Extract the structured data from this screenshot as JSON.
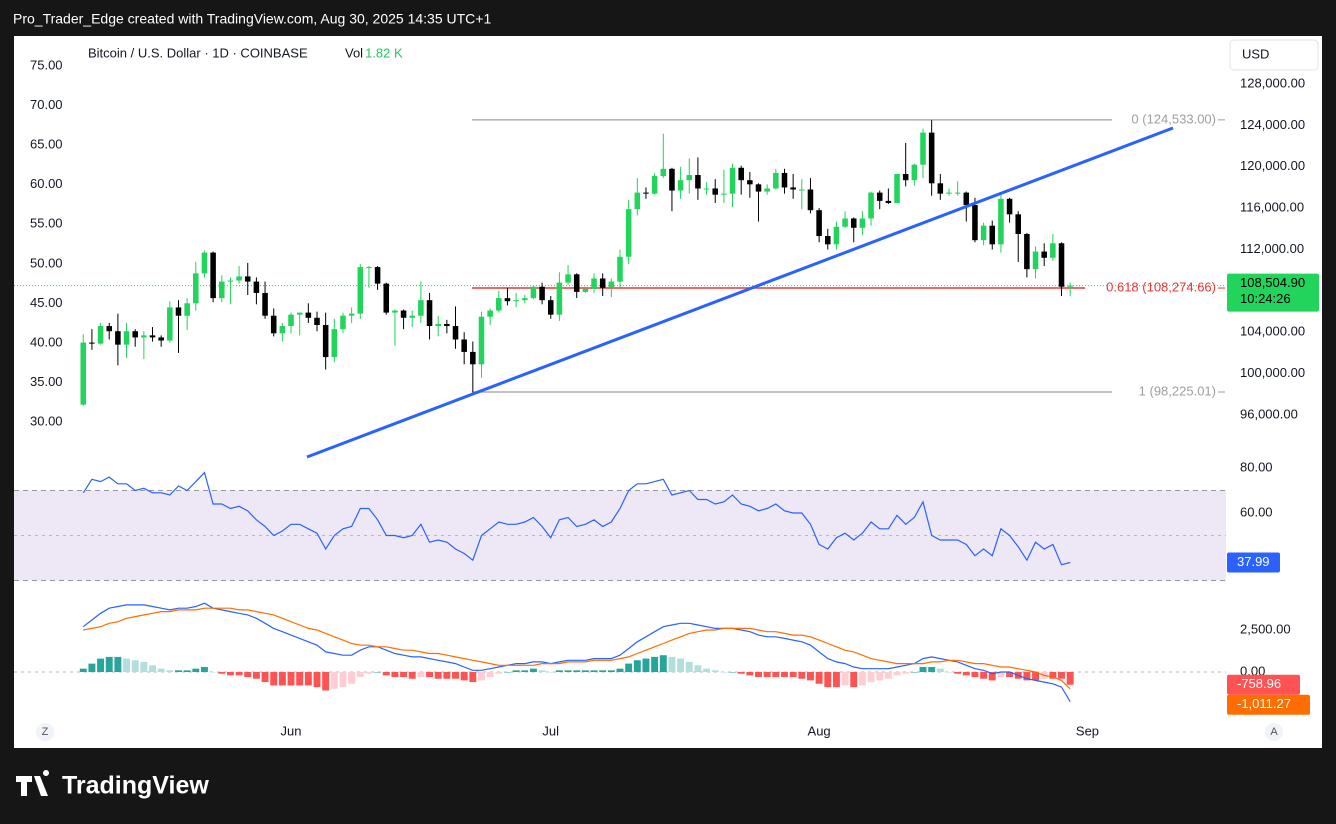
{
  "header": "Pro_Trader_Edge created with TradingView.com, Aug 30, 2025 14:35 UTC+1",
  "brand": "TradingView",
  "corner_left": "Z",
  "corner_right": "A",
  "chart_data": [
    {
      "type": "candlestick",
      "title": "Bitcoin / U.S. Dollar · 1D · COINBASE",
      "volume_label": "Vol",
      "volume": {
        "value": 1820,
        "label": "1.82 K"
      },
      "currency": "USD",
      "up_color": "#22d35c",
      "down_color": "#000000",
      "open": [
        97000,
        103000,
        102900,
        104600,
        104100,
        102800,
        104100,
        103500,
        103700,
        103500,
        103200,
        106400,
        105600,
        106800,
        109700,
        111700,
        107300,
        108900,
        109000,
        109400,
        108900,
        107800,
        105600,
        103900,
        104600,
        105700,
        105900,
        105400,
        104700,
        101600,
        104300,
        105600,
        105800,
        110300,
        110300,
        108700,
        105900,
        106100,
        105400,
        105600,
        107100,
        104600,
        104800,
        104600,
        103300,
        102100,
        100900,
        105500,
        106100,
        107300,
        107000,
        107100,
        107300,
        108400,
        107100,
        105700,
        108800,
        109600,
        107900,
        108200,
        109200,
        108300,
        108900,
        111300,
        115900,
        117500,
        117400,
        119100,
        119800,
        117700,
        118700,
        119200,
        117900,
        117900,
        117300,
        117400,
        119900,
        118700,
        118300,
        117600,
        117900,
        119400,
        118000,
        117800,
        117800,
        115800,
        113300,
        112500,
        114200,
        115000,
        114100,
        115000,
        117500,
        116700,
        116500,
        119300,
        118700,
        120200,
        123300,
        118400,
        117400,
        117500,
        117500,
        116300,
        112900,
        114300,
        112500,
        116900,
        115400,
        113500,
        110100,
        111800,
        111200,
        112600,
        108400
      ],
      "high": [
        103800,
        104300,
        104900,
        104900,
        105800,
        104900,
        104300,
        104100,
        104500,
        103700,
        107000,
        107100,
        107300,
        110800,
        111900,
        111800,
        109500,
        109300,
        110400,
        110700,
        109300,
        108900,
        106300,
        104900,
        105900,
        105900,
        106800,
        106000,
        105900,
        105300,
        105900,
        106400,
        110600,
        110400,
        110400,
        108800,
        106200,
        106200,
        106100,
        108900,
        107800,
        105600,
        105200,
        106500,
        104000,
        103100,
        106000,
        106300,
        108000,
        108300,
        107800,
        107600,
        108500,
        108800,
        107500,
        109800,
        110500,
        109700,
        108400,
        109700,
        109700,
        109200,
        112000,
        116800,
        118900,
        118000,
        119400,
        123200,
        119900,
        120000,
        120800,
        120900,
        118500,
        118800,
        119700,
        120300,
        120100,
        119500,
        118400,
        118300,
        119800,
        119800,
        119300,
        118800,
        118900,
        116000,
        114000,
        114700,
        115700,
        115100,
        115700,
        117600,
        117700,
        117900,
        119300,
        122300,
        120300,
        123700,
        124500,
        119300,
        117900,
        118600,
        117600,
        117000,
        114600,
        114800,
        117400,
        117000,
        115700,
        113600,
        112300,
        112600,
        113500,
        112700,
        108800
      ],
      "low": [
        96900,
        102300,
        102800,
        103300,
        100800,
        101500,
        102600,
        101400,
        103100,
        102600,
        103000,
        102000,
        104200,
        106100,
        109300,
        106900,
        106900,
        106700,
        108700,
        107600,
        106700,
        105300,
        103600,
        103100,
        103900,
        103700,
        104900,
        104100,
        100400,
        101100,
        103900,
        104900,
        105300,
        108300,
        108100,
        105700,
        102700,
        104300,
        104500,
        104900,
        103300,
        103600,
        103900,
        102400,
        100900,
        98200,
        99600,
        104700,
        105900,
        106600,
        106400,
        106800,
        107200,
        106700,
        105300,
        105100,
        108600,
        107300,
        107800,
        107800,
        107500,
        107400,
        108300,
        110600,
        115300,
        116900,
        117300,
        118900,
        115700,
        116900,
        117400,
        116800,
        117300,
        116500,
        116500,
        116100,
        117300,
        117000,
        114700,
        117300,
        117800,
        117400,
        116900,
        115900,
        115500,
        112700,
        112000,
        112000,
        114100,
        112700,
        113400,
        114300,
        115900,
        116400,
        116500,
        118100,
        118200,
        118900,
        117200,
        116800,
        117200,
        117200,
        114700,
        112700,
        112400,
        112000,
        111700,
        114600,
        110800,
        109300,
        109200,
        110400,
        110900,
        107500,
        107500
      ],
      "close": [
        103000,
        102900,
        104600,
        104100,
        102800,
        104100,
        103500,
        103700,
        103500,
        103200,
        106400,
        105600,
        106800,
        109700,
        111700,
        107300,
        108900,
        109000,
        109400,
        108900,
        107800,
        105600,
        103900,
        104600,
        105700,
        105900,
        105400,
        104700,
        101600,
        104300,
        105600,
        105800,
        110300,
        110300,
        108700,
        105900,
        106100,
        105400,
        105600,
        107100,
        104600,
        104800,
        104600,
        103300,
        102100,
        100900,
        105500,
        106100,
        107300,
        107000,
        107100,
        107300,
        108400,
        107100,
        105700,
        108800,
        109600,
        107900,
        108200,
        109200,
        108300,
        108900,
        111300,
        115900,
        117500,
        117400,
        119100,
        119800,
        117700,
        118700,
        119200,
        117900,
        117900,
        117300,
        117400,
        119900,
        118700,
        118300,
        117600,
        117900,
        119400,
        118000,
        117800,
        117800,
        115800,
        113300,
        112500,
        114200,
        115000,
        114100,
        115000,
        117500,
        116700,
        116500,
        119300,
        118700,
        120200,
        123300,
        118400,
        117400,
        117500,
        117500,
        116300,
        112900,
        114300,
        112500,
        116900,
        115400,
        113500,
        110100,
        111800,
        111200,
        112600,
        108400,
        108504.9
      ],
      "ylim": [
        91650,
        132640
      ],
      "yticks": [
        {
          "value": 96000,
          "label": "96,000.00"
        },
        {
          "value": 100000,
          "label": "100,000.00"
        },
        {
          "value": 104000,
          "label": "104,000.00"
        },
        {
          "value": 108000,
          "label": "108,000.00"
        },
        {
          "value": 112000,
          "label": "112,000.00"
        },
        {
          "value": 116000,
          "label": "116,000.00"
        },
        {
          "value": 120000,
          "label": "120,000.00"
        },
        {
          "value": 124000,
          "label": "124,000.00"
        },
        {
          "value": 128000,
          "label": "128,000.00"
        }
      ],
      "left_ylim": [
        25.2,
        78.8
      ],
      "left_yticks": [
        {
          "value": 30,
          "label": "30.00"
        },
        {
          "value": 35,
          "label": "35.00"
        },
        {
          "value": 40,
          "label": "40.00"
        },
        {
          "value": 45,
          "label": "45.00"
        },
        {
          "value": 50,
          "label": "50.00"
        },
        {
          "value": 55,
          "label": "55.00"
        },
        {
          "value": 60,
          "label": "60.00"
        },
        {
          "value": 65,
          "label": "65.00"
        },
        {
          "value": 70,
          "label": "70.00"
        },
        {
          "value": 75,
          "label": "75.00"
        }
      ],
      "xlim": [
        -8,
        132
      ],
      "xticks": [
        {
          "value": 24,
          "label": "Jun"
        },
        {
          "value": 54,
          "label": "Jul"
        },
        {
          "value": 85,
          "label": "Aug"
        },
        {
          "value": 116,
          "label": "Sep"
        }
      ],
      "last_price": {
        "value": 108504.9,
        "label": "108,504.90"
      },
      "countdown": "10:24:26",
      "fib": [
        {
          "value": 124533,
          "label": "0 (124,533.00)",
          "color": "#9e9e9e"
        },
        {
          "value": 108274.66,
          "label": "0.618 (108,274.66)",
          "color": "#e53935"
        },
        {
          "value": 98225.01,
          "label": "1 (98,225.01)",
          "color": "#9e9e9e"
        }
      ]
    },
    {
      "type": "line",
      "color": "#2962ff",
      "values": [
        69,
        75,
        74,
        76,
        73,
        73,
        70,
        71,
        69,
        69,
        68,
        72,
        70,
        74,
        78,
        64,
        64,
        62,
        63,
        61,
        57,
        54,
        50,
        52,
        55,
        55,
        53,
        51,
        44,
        50,
        53,
        54,
        62,
        62,
        57,
        50,
        50,
        49,
        50,
        55,
        47,
        48,
        47,
        44,
        42,
        39,
        50,
        53,
        56,
        55,
        55,
        56,
        58,
        54,
        49,
        57,
        58,
        54,
        55,
        57,
        54,
        56,
        62,
        70,
        73,
        73,
        74,
        75,
        68,
        69,
        70,
        66,
        66,
        64,
        65,
        68,
        64,
        63,
        61,
        62,
        64,
        61,
        60,
        60,
        55,
        46,
        44,
        49,
        51,
        48,
        51,
        56,
        53,
        53,
        59,
        55,
        58,
        65,
        50,
        48,
        48,
        48,
        46,
        41,
        44,
        41,
        53,
        50,
        45,
        39,
        47,
        44,
        46,
        37,
        37.99
      ],
      "ylim": [
        21.3,
        82.7
      ],
      "yticks": [
        {
          "value": 80,
          "label": "80.00"
        },
        {
          "value": 60,
          "label": "60.00"
        }
      ],
      "bands": [
        70,
        50,
        30
      ],
      "band_fill": "#ede7f6"
    },
    {
      "type": "macd",
      "macd": {
        "color": "#2962ff",
        "values": [
          2700,
          3100,
          3500,
          3800,
          3900,
          4000,
          4000,
          4000,
          3900,
          3800,
          3700,
          3800,
          3800,
          3900,
          4100,
          3800,
          3700,
          3600,
          3500,
          3400,
          3200,
          2900,
          2600,
          2400,
          2200,
          2000,
          1800,
          1600,
          1200,
          1100,
          1000,
          1000,
          1300,
          1500,
          1500,
          1300,
          1100,
          1000,
          900,
          900,
          800,
          700,
          600,
          500,
          300,
          100,
          100,
          200,
          300,
          400,
          500,
          500,
          600,
          600,
          500,
          600,
          700,
          700,
          700,
          800,
          800,
          800,
          1000,
          1400,
          1800,
          2100,
          2400,
          2700,
          2800,
          2900,
          2900,
          2800,
          2700,
          2600,
          2600,
          2600,
          2500,
          2400,
          2200,
          2100,
          2100,
          2000,
          1900,
          1800,
          1600,
          1200,
          800,
          600,
          500,
          300,
          200,
          200,
          200,
          200,
          300,
          400,
          500,
          800,
          900,
          800,
          700,
          600,
          400,
          200,
          100,
          -100,
          0,
          0,
          -200,
          -400,
          -500,
          -600,
          -700,
          -900,
          -1770.23
        ]
      },
      "signal": {
        "color": "#ff6d00",
        "values": [
          2500,
          2600,
          2700,
          2900,
          3000,
          3200,
          3300,
          3400,
          3500,
          3600,
          3600,
          3700,
          3700,
          3700,
          3800,
          3800,
          3800,
          3800,
          3700,
          3700,
          3600,
          3500,
          3400,
          3200,
          3000,
          2800,
          2600,
          2500,
          2300,
          2100,
          1900,
          1700,
          1600,
          1600,
          1500,
          1500,
          1400,
          1300,
          1300,
          1200,
          1100,
          1100,
          1000,
          900,
          800,
          700,
          600,
          500,
          400,
          400,
          400,
          400,
          400,
          500,
          500,
          500,
          600,
          600,
          600,
          700,
          700,
          700,
          800,
          900,
          1100,
          1300,
          1500,
          1700,
          1900,
          2100,
          2300,
          2400,
          2500,
          2500,
          2600,
          2600,
          2600,
          2600,
          2500,
          2400,
          2400,
          2300,
          2200,
          2200,
          2100,
          1900,
          1700,
          1500,
          1300,
          1200,
          1000,
          800,
          700,
          600,
          500,
          500,
          500,
          500,
          600,
          600,
          700,
          700,
          600,
          500,
          500,
          400,
          300,
          300,
          200,
          100,
          0,
          -200,
          -300,
          -500,
          -1011.27
        ],
        "last": {
          "value": -1011.27,
          "label": "-1,011.27"
        }
      },
      "histogram": {
        "colors": [
          "#26a69a",
          "#b2dfdb",
          "#ff5252",
          "#ffcdd2"
        ],
        "values": [
          200,
          500,
          800,
          900,
          900,
          800,
          700,
          600,
          400,
          200,
          100,
          100,
          100,
          200,
          300,
          0,
          -100,
          -200,
          -200,
          -300,
          -400,
          -600,
          -800,
          -800,
          -800,
          -800,
          -800,
          -900,
          -1100,
          -1000,
          -900,
          -700,
          -300,
          -100,
          0,
          -200,
          -300,
          -300,
          -400,
          -300,
          -300,
          -400,
          -400,
          -400,
          -500,
          -600,
          -500,
          -300,
          -100,
          0,
          100,
          100,
          200,
          100,
          0,
          100,
          100,
          100,
          100,
          100,
          100,
          100,
          200,
          500,
          700,
          800,
          900,
          1000,
          900,
          800,
          600,
          400,
          200,
          100,
          0,
          0,
          -100,
          -200,
          -300,
          -300,
          -300,
          -300,
          -300,
          -400,
          -500,
          -700,
          -900,
          -900,
          -800,
          -900,
          -800,
          -600,
          -500,
          -400,
          -200,
          -100,
          0,
          300,
          300,
          200,
          0,
          -100,
          -200,
          -300,
          -400,
          -500,
          -300,
          -300,
          -400,
          -500,
          -500,
          -400,
          -400,
          -400,
          -758.96
        ]
      },
      "ylim": [
        -2740,
        4290
      ],
      "yticks": [
        {
          "value": 2500,
          "label": "2,500.00"
        },
        {
          "value": 0,
          "label": "0.00"
        }
      ]
    }
  ]
}
